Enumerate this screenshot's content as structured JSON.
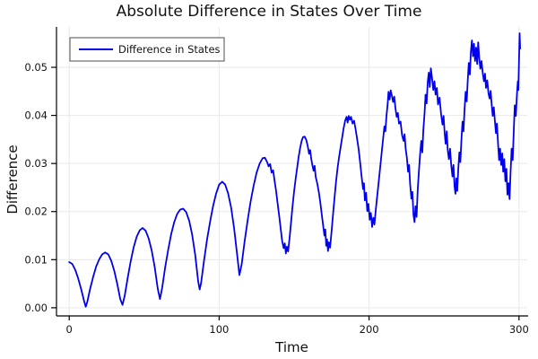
{
  "chart_data": {
    "type": "line",
    "title": "Absolute Difference in States Over Time",
    "xlabel": "Time",
    "ylabel": "Difference",
    "xlim": [
      -8.5,
      305.5
    ],
    "ylim": [
      -0.0017,
      0.0584
    ],
    "grid": true,
    "xticks": {
      "values": [
        0,
        100,
        200,
        300
      ],
      "labels": [
        "0",
        "100",
        "200",
        "300"
      ]
    },
    "yticks": {
      "values": [
        0.0,
        0.01,
        0.02,
        0.03,
        0.04,
        0.05
      ],
      "labels": [
        "0.00",
        "0.01",
        "0.02",
        "0.03",
        "0.04",
        "0.05"
      ]
    },
    "legend": {
      "position": "top-left",
      "entries": [
        {
          "label": "Difference in States",
          "color": "#0000ee"
        }
      ]
    },
    "style": {
      "line": "#0000ee",
      "grid": "#e9e9e9",
      "axis": "#000000",
      "text": "#141414",
      "background": "#ffffff",
      "legend_border": "#4d4d4d"
    },
    "series": [
      {
        "name": "Difference in States",
        "color": "#0000ee",
        "points": [
          [
            0,
            0.0095
          ],
          [
            2,
            0.0091
          ],
          [
            4,
            0.0079
          ],
          [
            6,
            0.0061
          ],
          [
            8,
            0.0038
          ],
          [
            10,
            0.0013
          ],
          [
            11,
            0.0002
          ],
          [
            12,
            0.0012
          ],
          [
            14,
            0.004
          ],
          [
            16,
            0.0065
          ],
          [
            18,
            0.0086
          ],
          [
            20,
            0.0101
          ],
          [
            22,
            0.0111
          ],
          [
            24,
            0.0115
          ],
          [
            26,
            0.0111
          ],
          [
            28,
            0.0098
          ],
          [
            30,
            0.0077
          ],
          [
            32,
            0.005
          ],
          [
            34,
            0.0018
          ],
          [
            35.5,
            0.0006
          ],
          [
            37,
            0.0025
          ],
          [
            39,
            0.0062
          ],
          [
            41,
            0.0097
          ],
          [
            43,
            0.0126
          ],
          [
            45,
            0.0148
          ],
          [
            47,
            0.0161
          ],
          [
            49,
            0.0166
          ],
          [
            51,
            0.016
          ],
          [
            53,
            0.0144
          ],
          [
            55,
            0.0119
          ],
          [
            57,
            0.0085
          ],
          [
            59,
            0.004
          ],
          [
            60.5,
            0.0018
          ],
          [
            62,
            0.0042
          ],
          [
            64,
            0.0084
          ],
          [
            66,
            0.0121
          ],
          [
            68,
            0.0153
          ],
          [
            70,
            0.0178
          ],
          [
            72,
            0.0195
          ],
          [
            74,
            0.0204
          ],
          [
            76,
            0.0206
          ],
          [
            78,
            0.0199
          ],
          [
            80,
            0.0181
          ],
          [
            82,
            0.0152
          ],
          [
            84,
            0.011
          ],
          [
            86,
            0.0055
          ],
          [
            87,
            0.0038
          ],
          [
            88,
            0.0052
          ],
          [
            90,
            0.01
          ],
          [
            92,
            0.0143
          ],
          [
            94,
            0.018
          ],
          [
            96,
            0.0212
          ],
          [
            98,
            0.0238
          ],
          [
            100,
            0.0256
          ],
          [
            102,
            0.0262
          ],
          [
            104,
            0.0256
          ],
          [
            106,
            0.0238
          ],
          [
            108,
            0.0208
          ],
          [
            110,
            0.0165
          ],
          [
            112,
            0.011
          ],
          [
            113.5,
            0.0068
          ],
          [
            115,
            0.009
          ],
          [
            117,
            0.0138
          ],
          [
            119,
            0.0182
          ],
          [
            121,
            0.0221
          ],
          [
            123,
            0.0254
          ],
          [
            125,
            0.0281
          ],
          [
            127,
            0.03
          ],
          [
            129,
            0.0311
          ],
          [
            130.5,
            0.0312
          ],
          [
            132,
            0.0303
          ],
          [
            133,
            0.0294
          ],
          [
            134,
            0.0299
          ],
          [
            135,
            0.0281
          ],
          [
            136,
            0.0286
          ],
          [
            137,
            0.0263
          ],
          [
            138,
            0.0243
          ],
          [
            139,
            0.0217
          ],
          [
            140,
            0.0192
          ],
          [
            141,
            0.0165
          ],
          [
            142,
            0.014
          ],
          [
            143,
            0.0124
          ],
          [
            143.8,
            0.0134
          ],
          [
            144.5,
            0.0113
          ],
          [
            145.2,
            0.0127
          ],
          [
            146,
            0.0117
          ],
          [
            147,
            0.0146
          ],
          [
            148,
            0.018
          ],
          [
            149,
            0.0212
          ],
          [
            150,
            0.0242
          ],
          [
            151,
            0.0268
          ],
          [
            152,
            0.0291
          ],
          [
            153,
            0.0313
          ],
          [
            154,
            0.0332
          ],
          [
            155,
            0.0347
          ],
          [
            156,
            0.0355
          ],
          [
            157,
            0.0356
          ],
          [
            158,
            0.035
          ],
          [
            159,
            0.0337
          ],
          [
            160,
            0.032
          ],
          [
            160.7,
            0.0328
          ],
          [
            161.4,
            0.031
          ],
          [
            162,
            0.0299
          ],
          [
            163,
            0.0285
          ],
          [
            163.7,
            0.0295
          ],
          [
            164.4,
            0.0272
          ],
          [
            165.5,
            0.0258
          ],
          [
            166.5,
            0.024
          ],
          [
            167.5,
            0.0218
          ],
          [
            168.5,
            0.0193
          ],
          [
            169.5,
            0.0168
          ],
          [
            170.2,
            0.015
          ],
          [
            170.8,
            0.0163
          ],
          [
            171.4,
            0.0129
          ],
          [
            172,
            0.0142
          ],
          [
            172.6,
            0.0118
          ],
          [
            173.2,
            0.0136
          ],
          [
            174,
            0.0125
          ],
          [
            175,
            0.0159
          ],
          [
            176,
            0.0196
          ],
          [
            177,
            0.0231
          ],
          [
            178,
            0.0263
          ],
          [
            179,
            0.0291
          ],
          [
            180,
            0.0314
          ],
          [
            181,
            0.0333
          ],
          [
            182,
            0.0353
          ],
          [
            183,
            0.0373
          ],
          [
            184,
            0.0389
          ],
          [
            185,
            0.0397
          ],
          [
            185.7,
            0.0385
          ],
          [
            186.4,
            0.0399
          ],
          [
            187.2,
            0.0391
          ],
          [
            188,
            0.0397
          ],
          [
            189,
            0.0383
          ],
          [
            190,
            0.0389
          ],
          [
            191,
            0.0371
          ],
          [
            192,
            0.0352
          ],
          [
            193,
            0.0331
          ],
          [
            194,
            0.0303
          ],
          [
            195,
            0.0274
          ],
          [
            196,
            0.0247
          ],
          [
            196.6,
            0.0259
          ],
          [
            197.2,
            0.0223
          ],
          [
            198,
            0.0239
          ],
          [
            198.8,
            0.0201
          ],
          [
            199.6,
            0.0216
          ],
          [
            200.4,
            0.0183
          ],
          [
            201.2,
            0.0197
          ],
          [
            202,
            0.0168
          ],
          [
            202.8,
            0.0187
          ],
          [
            203.6,
            0.0173
          ],
          [
            204.4,
            0.0202
          ],
          [
            205.4,
            0.0231
          ],
          [
            206.4,
            0.0261
          ],
          [
            207.4,
            0.0292
          ],
          [
            208.4,
            0.0323
          ],
          [
            209.4,
            0.0352
          ],
          [
            210.2,
            0.0377
          ],
          [
            210.9,
            0.0367
          ],
          [
            211.6,
            0.0399
          ],
          [
            212.3,
            0.0421
          ],
          [
            213,
            0.0449
          ],
          [
            213.7,
            0.0433
          ],
          [
            214.4,
            0.0452
          ],
          [
            215.2,
            0.0441
          ],
          [
            216,
            0.0428
          ],
          [
            216.8,
            0.0439
          ],
          [
            217.6,
            0.0415
          ],
          [
            218.4,
            0.0397
          ],
          [
            219.2,
            0.0405
          ],
          [
            220,
            0.0383
          ],
          [
            221,
            0.0387
          ],
          [
            222,
            0.0359
          ],
          [
            223,
            0.0347
          ],
          [
            223.7,
            0.0361
          ],
          [
            224.4,
            0.0331
          ],
          [
            225.2,
            0.0313
          ],
          [
            226,
            0.0283
          ],
          [
            226.7,
            0.0297
          ],
          [
            227.4,
            0.0257
          ],
          [
            228.2,
            0.0227
          ],
          [
            228.9,
            0.0241
          ],
          [
            229.6,
            0.0194
          ],
          [
            230.3,
            0.0178
          ],
          [
            231,
            0.0211
          ],
          [
            231.7,
            0.0189
          ],
          [
            232.4,
            0.0243
          ],
          [
            233.2,
            0.0281
          ],
          [
            234,
            0.0319
          ],
          [
            234.8,
            0.0347
          ],
          [
            235.5,
            0.0323
          ],
          [
            236.2,
            0.0369
          ],
          [
            237,
            0.0405
          ],
          [
            237.7,
            0.0443
          ],
          [
            238.4,
            0.0425
          ],
          [
            239.1,
            0.0469
          ],
          [
            239.8,
            0.0489
          ],
          [
            240.5,
            0.0459
          ],
          [
            241.2,
            0.0498
          ],
          [
            242,
            0.0478
          ],
          [
            242.8,
            0.0453
          ],
          [
            243.6,
            0.0471
          ],
          [
            244.4,
            0.0443
          ],
          [
            245.2,
            0.0457
          ],
          [
            246,
            0.0423
          ],
          [
            247,
            0.0437
          ],
          [
            248,
            0.0403
          ],
          [
            249,
            0.0381
          ],
          [
            249.7,
            0.0399
          ],
          [
            250.4,
            0.0363
          ],
          [
            251.1,
            0.0341
          ],
          [
            251.8,
            0.0367
          ],
          [
            252.5,
            0.0327
          ],
          [
            253.2,
            0.0309
          ],
          [
            254,
            0.0331
          ],
          [
            254.8,
            0.0297
          ],
          [
            255.6,
            0.0273
          ],
          [
            256.3,
            0.0297
          ],
          [
            257,
            0.0253
          ],
          [
            257.6,
            0.0237
          ],
          [
            258.2,
            0.0269
          ],
          [
            258.8,
            0.0243
          ],
          [
            259.5,
            0.0289
          ],
          [
            260.2,
            0.0323
          ],
          [
            260.9,
            0.0303
          ],
          [
            261.6,
            0.0349
          ],
          [
            262.3,
            0.0387
          ],
          [
            263,
            0.0367
          ],
          [
            263.7,
            0.0413
          ],
          [
            264.4,
            0.0449
          ],
          [
            265.1,
            0.0429
          ],
          [
            265.8,
            0.0471
          ],
          [
            266.5,
            0.0509
          ],
          [
            267.2,
            0.0485
          ],
          [
            267.9,
            0.0531
          ],
          [
            268.6,
            0.0556
          ],
          [
            269.3,
            0.0523
          ],
          [
            270,
            0.0549
          ],
          [
            270.7,
            0.0513
          ],
          [
            271.4,
            0.0541
          ],
          [
            272.1,
            0.0507
          ],
          [
            272.8,
            0.0552
          ],
          [
            273.5,
            0.0519
          ],
          [
            274.2,
            0.0497
          ],
          [
            275,
            0.0513
          ],
          [
            275.8,
            0.0489
          ],
          [
            276.6,
            0.0471
          ],
          [
            277.3,
            0.0487
          ],
          [
            278,
            0.0457
          ],
          [
            278.8,
            0.0473
          ],
          [
            279.6,
            0.0447
          ],
          [
            280.4,
            0.0435
          ],
          [
            281.1,
            0.0451
          ],
          [
            281.8,
            0.0421
          ],
          [
            282.5,
            0.0399
          ],
          [
            283.2,
            0.0417
          ],
          [
            283.9,
            0.0389
          ],
          [
            284.6,
            0.0363
          ],
          [
            285.3,
            0.0383
          ],
          [
            286,
            0.0343
          ],
          [
            286.7,
            0.0307
          ],
          [
            287.4,
            0.0331
          ],
          [
            288.1,
            0.0297
          ],
          [
            288.8,
            0.0321
          ],
          [
            289.5,
            0.0283
          ],
          [
            290.2,
            0.0309
          ],
          [
            290.9,
            0.0263
          ],
          [
            291.6,
            0.0289
          ],
          [
            292.3,
            0.0235
          ],
          [
            293,
            0.0259
          ],
          [
            293.7,
            0.0226
          ],
          [
            294.4,
            0.0281
          ],
          [
            295.1,
            0.0331
          ],
          [
            295.8,
            0.0307
          ],
          [
            296.5,
            0.0369
          ],
          [
            297.2,
            0.0421
          ],
          [
            297.9,
            0.0399
          ],
          [
            298.6,
            0.0443
          ],
          [
            299.2,
            0.0471
          ],
          [
            299.6,
            0.0453
          ],
          [
            300,
            0.0513
          ],
          [
            300.4,
            0.0571
          ],
          [
            300.8,
            0.0539
          ]
        ]
      }
    ]
  }
}
